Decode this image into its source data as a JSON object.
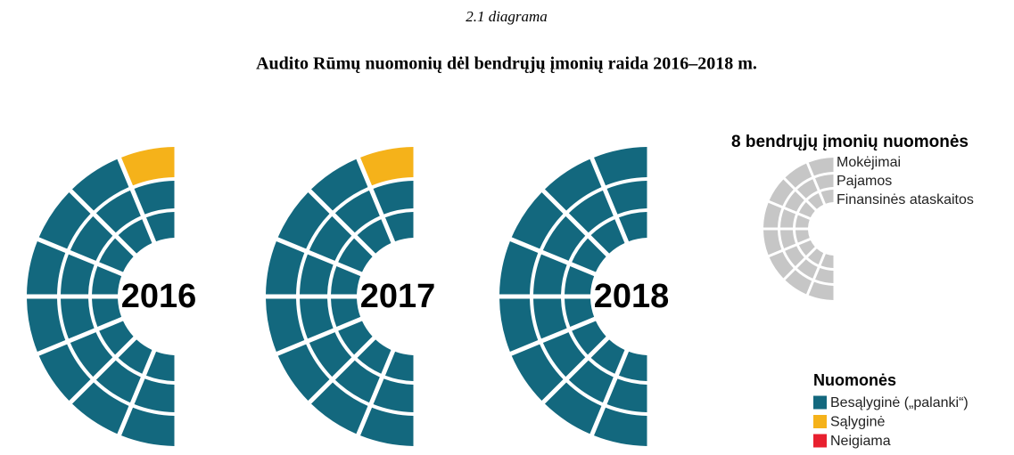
{
  "header": {
    "caption": "2.1 diagrama",
    "title": "Audito Rūmų nuomonių dėl bendrųjų įmonių raida 2016–2018 m."
  },
  "years": [
    {
      "label": "2016",
      "rings": [
        [
          "#f5b21a",
          "#13687e",
          "#13687e",
          "#13687e",
          "#13687e",
          "#13687e",
          "#13687e",
          "#13687e"
        ],
        [
          "#13687e",
          "#13687e",
          "#13687e",
          "#13687e",
          "#13687e",
          "#13687e",
          "#13687e",
          "#13687e"
        ],
        [
          "#13687e",
          "#13687e",
          "#13687e",
          "#13687e",
          "#13687e",
          "#13687e",
          "#13687e",
          "#13687e"
        ]
      ]
    },
    {
      "label": "2017",
      "rings": [
        [
          "#f5b21a",
          "#13687e",
          "#13687e",
          "#13687e",
          "#13687e",
          "#13687e",
          "#13687e",
          "#13687e"
        ],
        [
          "#13687e",
          "#13687e",
          "#13687e",
          "#13687e",
          "#13687e",
          "#13687e",
          "#13687e",
          "#13687e"
        ],
        [
          "#13687e",
          "#13687e",
          "#13687e",
          "#13687e",
          "#13687e",
          "#13687e",
          "#13687e",
          "#13687e"
        ]
      ]
    },
    {
      "label": "2018",
      "rings": [
        [
          "#13687e",
          "#13687e",
          "#13687e",
          "#13687e",
          "#13687e",
          "#13687e",
          "#13687e",
          "#13687e"
        ],
        [
          "#13687e",
          "#13687e",
          "#13687e",
          "#13687e",
          "#13687e",
          "#13687e",
          "#13687e",
          "#13687e"
        ],
        [
          "#13687e",
          "#13687e",
          "#13687e",
          "#13687e",
          "#13687e",
          "#13687e",
          "#13687e",
          "#13687e"
        ]
      ]
    }
  ],
  "key": {
    "title": "8 bendrųjų įmonių nuomonės",
    "color": "#c6c6c6",
    "rings": [
      "Mokėjimai",
      "Pajamos",
      "Finansinės ataskaitos"
    ]
  },
  "legend": {
    "title": "Nuomonės",
    "items": [
      {
        "name": "Besąlyginė („palanki“)",
        "color": "#13687e"
      },
      {
        "name": "Sąlyginė",
        "color": "#f5b21a"
      },
      {
        "name": "Neigiama",
        "color": "#e8202f"
      }
    ]
  }
}
